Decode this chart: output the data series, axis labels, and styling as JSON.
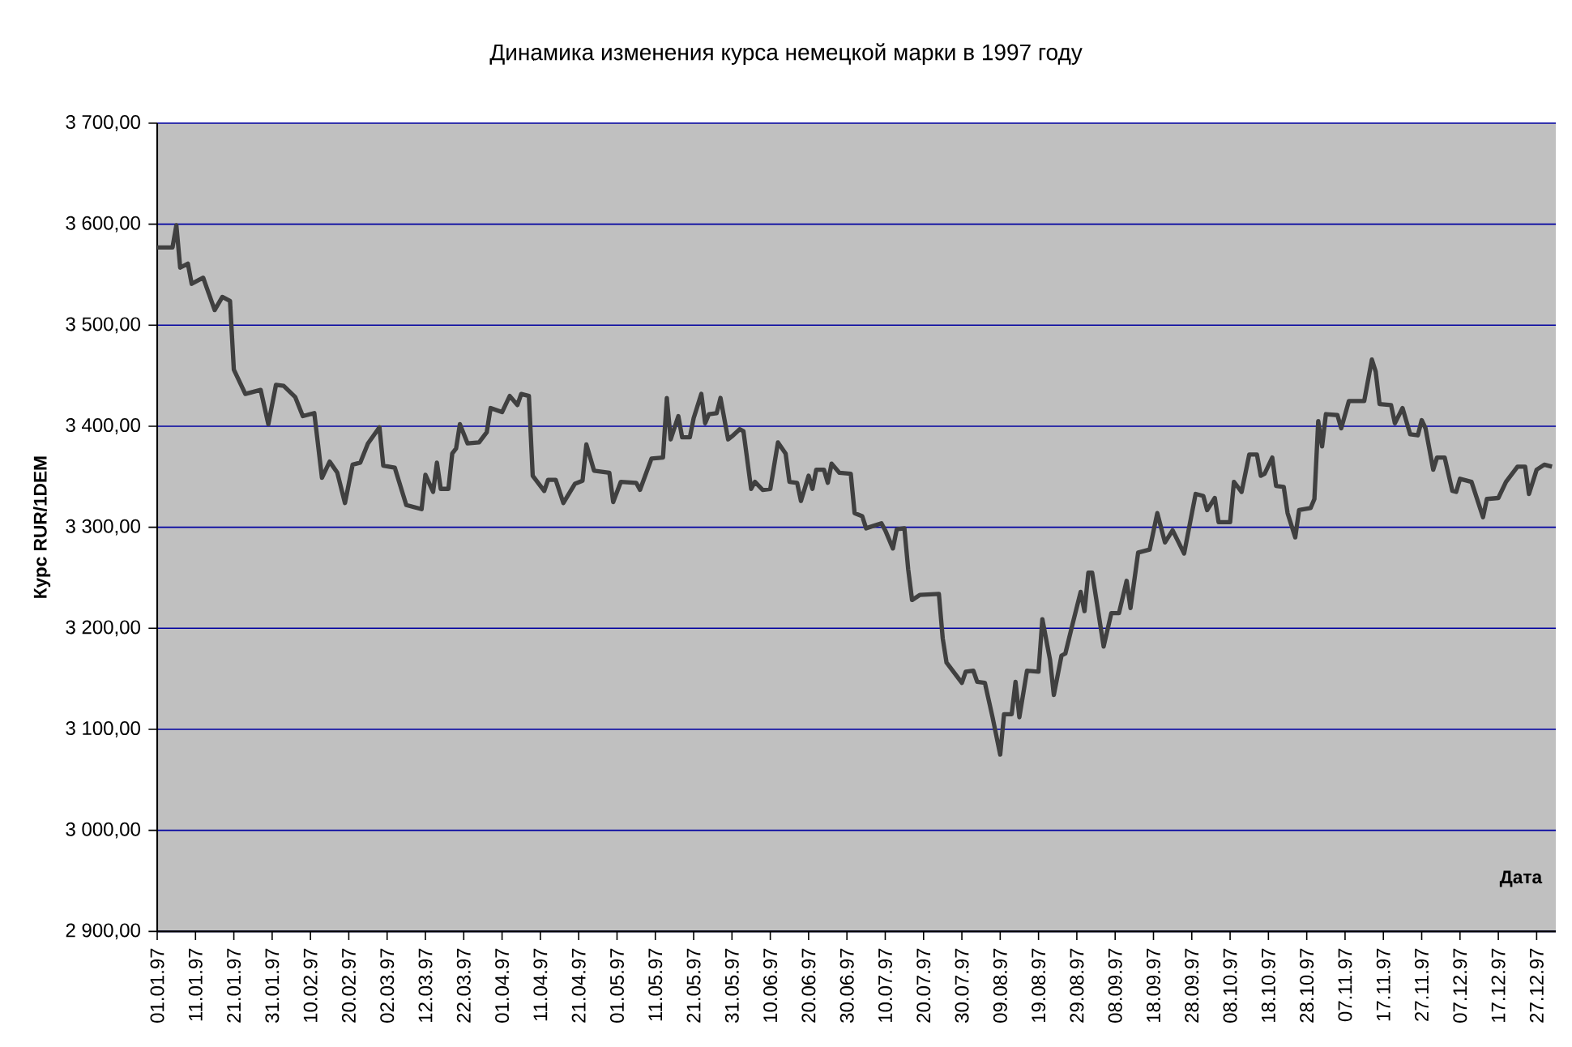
{
  "chart_data": {
    "type": "line",
    "title": "Динамика изменения курса немецкой марки в 1997 году",
    "xlabel": "Дата",
    "ylabel": "Курс RUR/1DEM",
    "xlim": [
      "1997-01-01",
      "1998-01-01"
    ],
    "ylim": [
      2900,
      3700
    ],
    "xticks": [
      {
        "value": "1997-01-01",
        "label": "01.01.97"
      },
      {
        "value": "1997-01-11",
        "label": "11.01.97"
      },
      {
        "value": "1997-01-21",
        "label": "21.01.97"
      },
      {
        "value": "1997-01-31",
        "label": "31.01.97"
      },
      {
        "value": "1997-02-10",
        "label": "10.02.97"
      },
      {
        "value": "1997-02-20",
        "label": "20.02.97"
      },
      {
        "value": "1997-03-02",
        "label": "02.03.97"
      },
      {
        "value": "1997-03-12",
        "label": "12.03.97"
      },
      {
        "value": "1997-03-22",
        "label": "22.03.97"
      },
      {
        "value": "1997-04-01",
        "label": "01.04.97"
      },
      {
        "value": "1997-04-11",
        "label": "11.04.97"
      },
      {
        "value": "1997-04-21",
        "label": "21.04.97"
      },
      {
        "value": "1997-05-01",
        "label": "01.05.97"
      },
      {
        "value": "1997-05-11",
        "label": "11.05.97"
      },
      {
        "value": "1997-05-21",
        "label": "21.05.97"
      },
      {
        "value": "1997-05-31",
        "label": "31.05.97"
      },
      {
        "value": "1997-06-10",
        "label": "10.06.97"
      },
      {
        "value": "1997-06-20",
        "label": "20.06.97"
      },
      {
        "value": "1997-06-30",
        "label": "30.06.97"
      },
      {
        "value": "1997-07-10",
        "label": "10.07.97"
      },
      {
        "value": "1997-07-20",
        "label": "20.07.97"
      },
      {
        "value": "1997-07-30",
        "label": "30.07.97"
      },
      {
        "value": "1997-08-09",
        "label": "09.08.97"
      },
      {
        "value": "1997-08-19",
        "label": "19.08.97"
      },
      {
        "value": "1997-08-29",
        "label": "29.08.97"
      },
      {
        "value": "1997-09-08",
        "label": "08.09.97"
      },
      {
        "value": "1997-09-18",
        "label": "18.09.97"
      },
      {
        "value": "1997-09-28",
        "label": "28.09.97"
      },
      {
        "value": "1997-10-08",
        "label": "08.10.97"
      },
      {
        "value": "1997-10-18",
        "label": "18.10.97"
      },
      {
        "value": "1997-10-28",
        "label": "28.10.97"
      },
      {
        "value": "1997-11-07",
        "label": "07.11.97"
      },
      {
        "value": "1997-11-17",
        "label": "17.11.97"
      },
      {
        "value": "1997-11-27",
        "label": "27.11.97"
      },
      {
        "value": "1997-12-07",
        "label": "07.12.97"
      },
      {
        "value": "1997-12-17",
        "label": "17.12.97"
      },
      {
        "value": "1997-12-27",
        "label": "27.12.97"
      }
    ],
    "yticks": [
      {
        "value": 2900,
        "label": "2 900,00"
      },
      {
        "value": 3000,
        "label": "3 000,00"
      },
      {
        "value": 3100,
        "label": "3 100,00"
      },
      {
        "value": 3200,
        "label": "3 200,00"
      },
      {
        "value": 3300,
        "label": "3 300,00"
      },
      {
        "value": 3400,
        "label": "3 400,00"
      },
      {
        "value": 3500,
        "label": "3 500,00"
      },
      {
        "value": 3600,
        "label": "3 600,00"
      },
      {
        "value": 3700,
        "label": "3 700,00"
      }
    ],
    "grid": "y",
    "marker": "none",
    "line_style": "solid",
    "series": [
      {
        "color": "#404040",
        "x": [
          "1997-01-01",
          "1997-01-05",
          "1997-01-06",
          "1997-01-07",
          "1997-01-09",
          "1997-01-10",
          "1997-01-13",
          "1997-01-16",
          "1997-01-18",
          "1997-01-20",
          "1997-01-21",
          "1997-01-24",
          "1997-01-28",
          "1997-01-30",
          "1997-02-01",
          "1997-02-03",
          "1997-02-06",
          "1997-02-08",
          "1997-02-11",
          "1997-02-13",
          "1997-02-15",
          "1997-02-17",
          "1997-02-19",
          "1997-02-21",
          "1997-02-23",
          "1997-02-25",
          "1997-02-28",
          "1997-03-01",
          "1997-03-04",
          "1997-03-07",
          "1997-03-11",
          "1997-03-12",
          "1997-03-14",
          "1997-03-15",
          "1997-03-16",
          "1997-03-18",
          "1997-03-19",
          "1997-03-20",
          "1997-03-21",
          "1997-03-23",
          "1997-03-26",
          "1997-03-28",
          "1997-03-29",
          "1997-04-01",
          "1997-04-03",
          "1997-04-05",
          "1997-04-06",
          "1997-04-08",
          "1997-04-09",
          "1997-04-12",
          "1997-04-13",
          "1997-04-15",
          "1997-04-17",
          "1997-04-20",
          "1997-04-22",
          "1997-04-23",
          "1997-04-25",
          "1997-04-29",
          "1997-04-30",
          "1997-05-02",
          "1997-05-06",
          "1997-05-07",
          "1997-05-10",
          "1997-05-13",
          "1997-05-14",
          "1997-05-15",
          "1997-05-17",
          "1997-05-18",
          "1997-05-20",
          "1997-05-21",
          "1997-05-23",
          "1997-05-24",
          "1997-05-25",
          "1997-05-27",
          "1997-05-28",
          "1997-05-30",
          "1997-05-31",
          "1997-06-02",
          "1997-06-03",
          "1997-06-05",
          "1997-06-06",
          "1997-06-08",
          "1997-06-10",
          "1997-06-12",
          "1997-06-14",
          "1997-06-15",
          "1997-06-17",
          "1997-06-18",
          "1997-06-20",
          "1997-06-21",
          "1997-06-22",
          "1997-06-24",
          "1997-06-25",
          "1997-06-26",
          "1997-06-28",
          "1997-07-01",
          "1997-07-02",
          "1997-07-04",
          "1997-07-05",
          "1997-07-09",
          "1997-07-10",
          "1997-07-12",
          "1997-07-13",
          "1997-07-15",
          "1997-07-16",
          "1997-07-17",
          "1997-07-19",
          "1997-07-24",
          "1997-07-25",
          "1997-07-26",
          "1997-07-27",
          "1997-07-30",
          "1997-07-31",
          "1997-08-02",
          "1997-08-03",
          "1997-08-05",
          "1997-08-07",
          "1997-08-09",
          "1997-08-10",
          "1997-08-12",
          "1997-08-13",
          "1997-08-14",
          "1997-08-16",
          "1997-08-19",
          "1997-08-20",
          "1997-08-22",
          "1997-08-23",
          "1997-08-25",
          "1997-08-26",
          "1997-08-28",
          "1997-08-30",
          "1997-08-31",
          "1997-09-01",
          "1997-09-02",
          "1997-09-05",
          "1997-09-07",
          "1997-09-09",
          "1997-09-11",
          "1997-09-12",
          "1997-09-14",
          "1997-09-17",
          "1997-09-19",
          "1997-09-21",
          "1997-09-23",
          "1997-09-26",
          "1997-09-29",
          "1997-10-01",
          "1997-10-02",
          "1997-10-04",
          "1997-10-05",
          "1997-10-08",
          "1997-10-09",
          "1997-10-11",
          "1997-10-13",
          "1997-10-15",
          "1997-10-16",
          "1997-10-17",
          "1997-10-19",
          "1997-10-20",
          "1997-10-22",
          "1997-10-23",
          "1997-10-25",
          "1997-10-26",
          "1997-10-29",
          "1997-10-30",
          "1997-10-31",
          "1997-11-01",
          "1997-11-02",
          "1997-11-05",
          "1997-11-06",
          "1997-11-08",
          "1997-11-12",
          "1997-11-14",
          "1997-11-15",
          "1997-11-16",
          "1997-11-19",
          "1997-11-20",
          "1997-11-22",
          "1997-11-24",
          "1997-11-26",
          "1997-11-27",
          "1997-11-28",
          "1997-11-30",
          "1997-12-01",
          "1997-12-03",
          "1997-12-05",
          "1997-12-06",
          "1997-12-07",
          "1997-12-10",
          "1997-12-13",
          "1997-12-14",
          "1997-12-17",
          "1997-12-19",
          "1997-12-22",
          "1997-12-24",
          "1997-12-25",
          "1997-12-27",
          "1997-12-29",
          "1997-12-31"
        ],
        "values": [
          3577,
          3577,
          3599,
          3557,
          3561,
          3541,
          3547,
          3515,
          3528,
          3524,
          3456,
          3432,
          3436,
          3402,
          3441,
          3440,
          3429,
          3410,
          3413,
          3349,
          3365,
          3354,
          3324,
          3362,
          3364,
          3383,
          3399,
          3361,
          3359,
          3322,
          3318,
          3352,
          3335,
          3364,
          3338,
          3338,
          3373,
          3378,
          3402,
          3383,
          3384,
          3394,
          3418,
          3414,
          3430,
          3421,
          3432,
          3430,
          3351,
          3336,
          3347,
          3347,
          3324,
          3343,
          3346,
          3382,
          3356,
          3354,
          3325,
          3345,
          3344,
          3337,
          3368,
          3369,
          3428,
          3387,
          3410,
          3389,
          3389,
          3408,
          3432,
          3403,
          3412,
          3413,
          3428,
          3387,
          3390,
          3397,
          3395,
          3338,
          3345,
          3337,
          3338,
          3384,
          3373,
          3345,
          3344,
          3326,
          3351,
          3338,
          3357,
          3357,
          3344,
          3363,
          3354,
          3353,
          3314,
          3311,
          3299,
          3304,
          3297,
          3279,
          3298,
          3299,
          3258,
          3228,
          3233,
          3234,
          3190,
          3166,
          3161,
          3146,
          3157,
          3158,
          3147,
          3146,
          3112,
          3075,
          3115,
          3115,
          3147,
          3112,
          3158,
          3157,
          3209,
          3169,
          3134,
          3173,
          3175,
          3206,
          3236,
          3217,
          3255,
          3255,
          3182,
          3215,
          3215,
          3247,
          3220,
          3275,
          3278,
          3314,
          3285,
          3297,
          3274,
          3333,
          3331,
          3317,
          3329,
          3305,
          3305,
          3345,
          3335,
          3372,
          3372,
          3351,
          3353,
          3369,
          3341,
          3340,
          3314,
          3290,
          3317,
          3319,
          3328,
          3405,
          3380,
          3412,
          3411,
          3398,
          3425,
          3425,
          3466,
          3454,
          3422,
          3421,
          3403,
          3418,
          3392,
          3391,
          3406,
          3398,
          3357,
          3369,
          3369,
          3336,
          3335,
          3348,
          3345,
          3310,
          3328,
          3329,
          3345,
          3360,
          3360,
          3333,
          3357,
          3362,
          3360
        ]
      }
    ]
  }
}
